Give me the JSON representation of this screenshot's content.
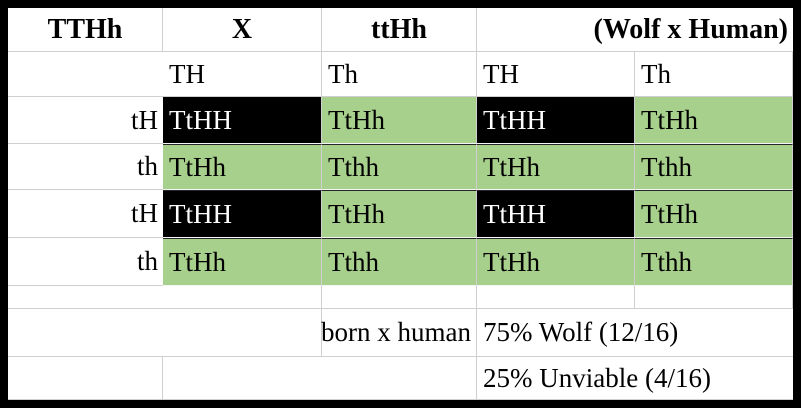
{
  "header": {
    "parent1": "TTHh",
    "cross_symbol": "X",
    "parent2": "ttHh",
    "note": "(Wolf x Human)"
  },
  "col_gametes": [
    "TH",
    "Th",
    "TH",
    "Th"
  ],
  "punnett": {
    "rows": [
      {
        "label": "tH",
        "cells": [
          {
            "text": "TtHH",
            "fill": "black"
          },
          {
            "text": "TtHh",
            "fill": "green"
          },
          {
            "text": "TtHH",
            "fill": "black"
          },
          {
            "text": "TtHh",
            "fill": "green"
          }
        ]
      },
      {
        "label": "th",
        "cells": [
          {
            "text": "TtHh",
            "fill": "green"
          },
          {
            "text": "Tthh",
            "fill": "green"
          },
          {
            "text": "TtHh",
            "fill": "green"
          },
          {
            "text": "Tthh",
            "fill": "green"
          }
        ]
      },
      {
        "label": "tH",
        "cells": [
          {
            "text": "TtHH",
            "fill": "black"
          },
          {
            "text": "TtHh",
            "fill": "green"
          },
          {
            "text": "TtHH",
            "fill": "black"
          },
          {
            "text": "TtHh",
            "fill": "green"
          }
        ]
      },
      {
        "label": "th",
        "cells": [
          {
            "text": "TtHh",
            "fill": "green"
          },
          {
            "text": "Tthh",
            "fill": "green"
          },
          {
            "text": "TtHh",
            "fill": "green"
          },
          {
            "text": "Tthh",
            "fill": "green"
          }
        ]
      }
    ]
  },
  "summary": {
    "label": "born x human",
    "wolf_line": "75% Wolf (12/16)",
    "unviable_line": "25% Unviable (4/16)"
  },
  "colors": {
    "viable_fill": "#a8d08d",
    "lethal_fill": "#000000",
    "lethal_text": "#ffffff",
    "gridline": "#d0cece",
    "outer_border": "#000000"
  }
}
